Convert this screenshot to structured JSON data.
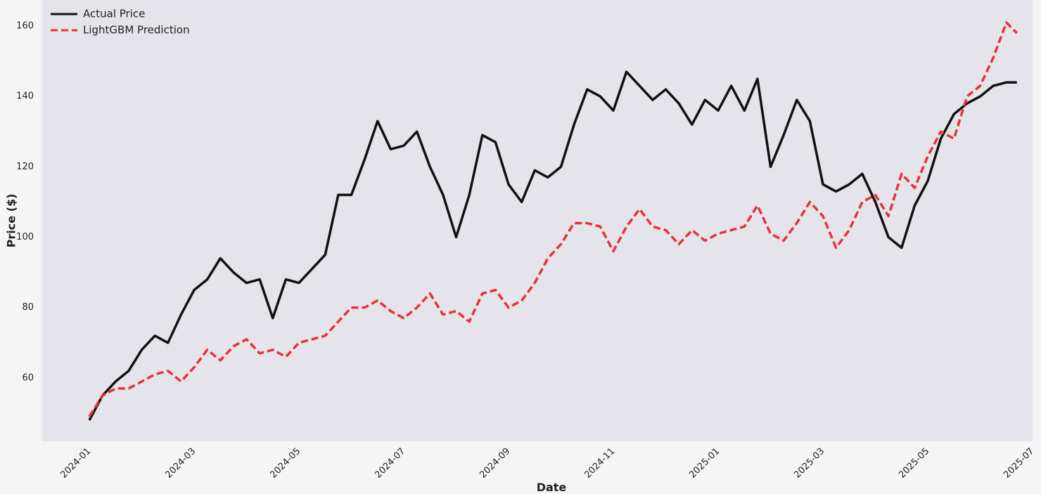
{
  "chart_data": {
    "type": "line",
    "xlabel": "Date",
    "ylabel": "Price ($)",
    "x": [
      0,
      0.25,
      0.5,
      0.75,
      1,
      1.25,
      1.5,
      1.75,
      2,
      2.25,
      2.5,
      2.75,
      3,
      3.25,
      3.5,
      3.75,
      4,
      4.25,
      4.5,
      4.75,
      5,
      5.25,
      5.5,
      5.75,
      6,
      6.25,
      6.5,
      6.75,
      7,
      7.25,
      7.5,
      7.75,
      8,
      8.25,
      8.5,
      8.75,
      9,
      9.25,
      9.5,
      9.75,
      10,
      10.25,
      10.5,
      10.75,
      11,
      11.25,
      11.5,
      11.75,
      12,
      12.25,
      12.5,
      12.75,
      13,
      13.25,
      13.5,
      13.75,
      14,
      14.25,
      14.5,
      14.75,
      15,
      15.25,
      15.5,
      15.75,
      16,
      16.25,
      16.5,
      16.75,
      17,
      17.25,
      17.5,
      17.7
    ],
    "series": [
      {
        "name": "Actual Price",
        "color": "#111111",
        "linestyle": "solid",
        "values": [
          48,
          55,
          59,
          62,
          68,
          72,
          70,
          78,
          85,
          88,
          94,
          90,
          87,
          88,
          77,
          88,
          87,
          91,
          95,
          112,
          112,
          122,
          133,
          125,
          126,
          130,
          120,
          112,
          100,
          112,
          129,
          127,
          115,
          110,
          119,
          117,
          120,
          132,
          142,
          140,
          136,
          147,
          143,
          139,
          142,
          138,
          132,
          139,
          136,
          143,
          136,
          145,
          120,
          129,
          139,
          133,
          115,
          113,
          115,
          118,
          110,
          100,
          97,
          109,
          116,
          128,
          135,
          138,
          140,
          143,
          144,
          144
        ]
      },
      {
        "name": "LightGBM Prediction",
        "color": "#e8313a",
        "linestyle": "dashed",
        "values": [
          49,
          55,
          57,
          57,
          59,
          61,
          62,
          59,
          63,
          68,
          65,
          69,
          71,
          67,
          68,
          66,
          70,
          71,
          72,
          76,
          80,
          80,
          82,
          79,
          77,
          80,
          84,
          78,
          79,
          76,
          84,
          85,
          80,
          82,
          87,
          94,
          98,
          104,
          104,
          103,
          96,
          103,
          108,
          103,
          102,
          98,
          102,
          99,
          101,
          102,
          103,
          109,
          101,
          99,
          104,
          110,
          106,
          97,
          102,
          110,
          112,
          106,
          118,
          114,
          123,
          130,
          128,
          140,
          143,
          151,
          161,
          158
        ]
      }
    ],
    "xlim": [
      -0.9,
      18.0
    ],
    "xticks": [
      {
        "value": 0,
        "label": "2024-01"
      },
      {
        "value": 2,
        "label": "2024-03"
      },
      {
        "value": 4,
        "label": "2024-05"
      },
      {
        "value": 6,
        "label": "2024-07"
      },
      {
        "value": 8,
        "label": "2024-09"
      },
      {
        "value": 10,
        "label": "2024-11"
      },
      {
        "value": 12,
        "label": "2025-01"
      },
      {
        "value": 14,
        "label": "2025-03"
      },
      {
        "value": 16,
        "label": "2025-05"
      },
      {
        "value": 18,
        "label": "2025-07"
      }
    ],
    "ylim": [
      42,
      167.4
    ],
    "yticks": [
      60,
      80,
      100,
      120,
      140,
      160
    ],
    "grid": false,
    "legend": "upper left"
  }
}
